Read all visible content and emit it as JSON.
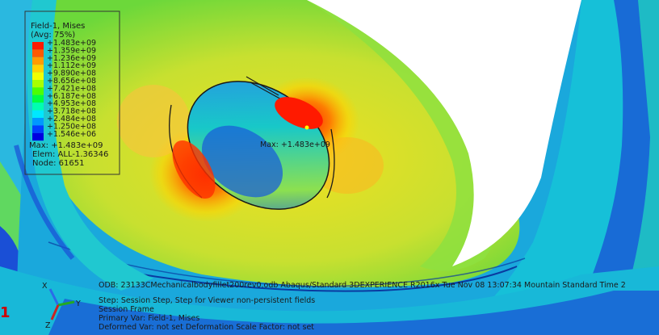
{
  "legend": {
    "title": "Field-1, Mises",
    "subtitle": "(Avg: 75%)",
    "bands": [
      {
        "label": "+1.483e+09",
        "color": "#ff1a00"
      },
      {
        "label": "+1.359e+09",
        "color": "#ff5a00"
      },
      {
        "label": "+1.236e+09",
        "color": "#ff9b00"
      },
      {
        "label": "+1.112e+09",
        "color": "#ffd200"
      },
      {
        "label": "+9.890e+08",
        "color": "#f0ff00"
      },
      {
        "label": "+8.656e+08",
        "color": "#a8ff00"
      },
      {
        "label": "+7.421e+08",
        "color": "#4cff00"
      },
      {
        "label": "+6.187e+08",
        "color": "#00ff40"
      },
      {
        "label": "+4.953e+08",
        "color": "#00ffb0"
      },
      {
        "label": "+3.718e+08",
        "color": "#00e8ff"
      },
      {
        "label": "+2.484e+08",
        "color": "#0098ff"
      },
      {
        "label": "+1.250e+08",
        "color": "#0040ff"
      },
      {
        "label": "+1.546e+06",
        "color": "#0000e0"
      }
    ],
    "max_line": "Max: +1.483e+09",
    "elem_line": "Elem: ALL-1.36346",
    "node_line": "Node: 61651"
  },
  "annotation": {
    "max_label": "Max: +1.483e+09"
  },
  "status": {
    "odb_line": "ODB: 23133CMechanicalbodyfillet200rev0.odb    Abaqus/Standard 3DEXPERIENCE R2016x    Tue Nov 08 13:07:34 Mountain Standard Time 2",
    "step_line": "Step: Session Step, Step for Viewer non-persistent fields",
    "frame_line": "Session Frame",
    "primary_line": "Primary Var: Field-1, Mises",
    "deformed_line": "Deformed Var: not set   Deformation Scale Factor: not set"
  },
  "triad": {
    "x_label": "X",
    "y_label": "Y",
    "z_label": "Z"
  },
  "side_marker": "1",
  "colors": {
    "background": "#ffffff",
    "shell_yellow": "#e6e628",
    "shell_green": "#6cd83a",
    "ring_cyan": "#18c8d8",
    "ring_blue": "#1a4fd6",
    "hot_red": "#ff1a00",
    "marker_red": "#cc0000"
  }
}
